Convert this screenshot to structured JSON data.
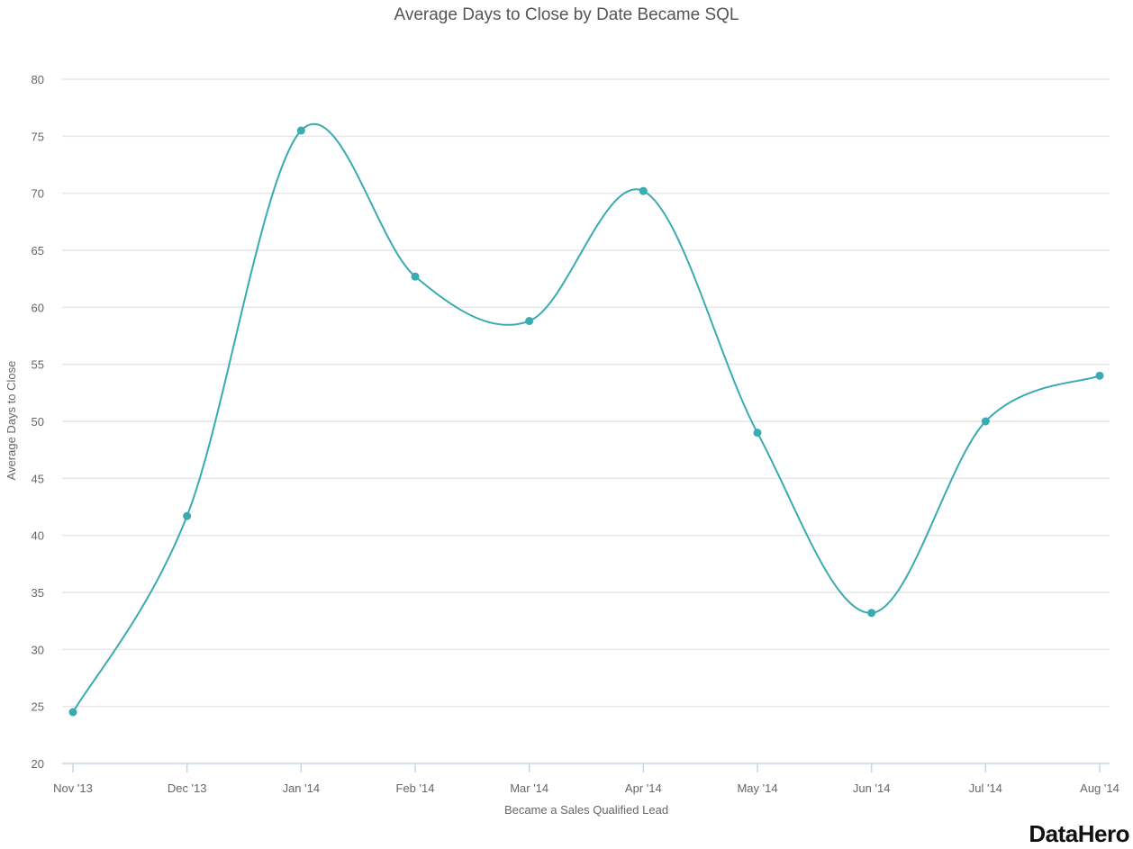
{
  "chart_data": {
    "type": "line",
    "title": "Average Days to Close by Date Became SQL",
    "xlabel": "Became a Sales Qualified Lead",
    "ylabel": "Average Days to Close",
    "categories": [
      "Nov '13",
      "Dec '13",
      "Jan '14",
      "Feb '14",
      "Mar '14",
      "Apr '14",
      "May '14",
      "Jun '14",
      "Jul '14",
      "Aug '14"
    ],
    "series": [
      {
        "values": [
          24.5,
          41.7,
          75.5,
          62.7,
          58.8,
          70.2,
          49.0,
          33.2,
          50.0,
          54.0
        ]
      }
    ],
    "ylim": [
      20,
      80
    ],
    "yticks": [
      20,
      25,
      30,
      35,
      40,
      45,
      50,
      55,
      60,
      65,
      70,
      75,
      80
    ],
    "grid": true,
    "line_color": "#3aabb0",
    "grid_color": "#e6e6e6"
  },
  "branding": {
    "logo_text": "DataHero"
  }
}
